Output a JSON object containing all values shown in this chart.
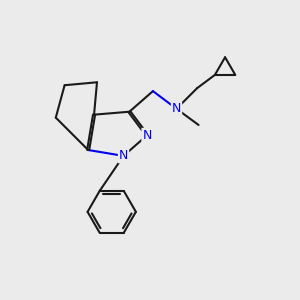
{
  "background_color": "#ebebeb",
  "bond_color": "#1a1a1a",
  "nitrogen_color": "#0000ee",
  "line_width": 1.5,
  "fig_size": [
    3.0,
    3.0
  ],
  "dpi": 100,
  "xlim": [
    0,
    10
  ],
  "ylim": [
    0,
    10
  ],
  "N_amine_label": "N",
  "N2_label": "N",
  "N1_label": "N"
}
